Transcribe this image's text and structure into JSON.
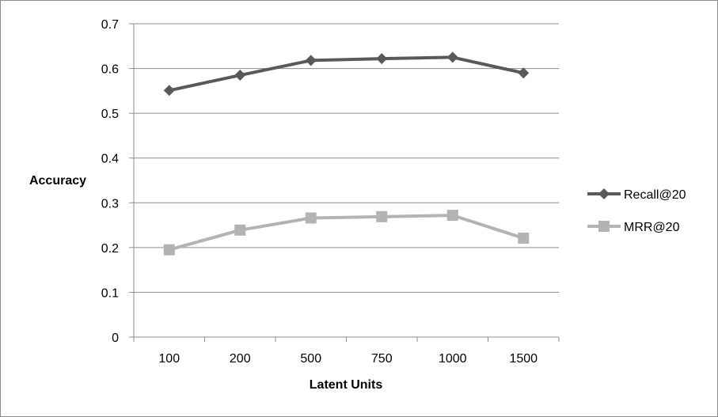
{
  "chart_data": {
    "type": "line",
    "categories": [
      "100",
      "200",
      "500",
      "750",
      "1000",
      "1500"
    ],
    "series": [
      {
        "name": "Recall@20",
        "values": [
          0.551,
          0.585,
          0.618,
          0.622,
          0.625,
          0.59
        ],
        "color": "#595959",
        "marker": "diamond"
      },
      {
        "name": "MRR@20",
        "values": [
          0.195,
          0.239,
          0.266,
          0.269,
          0.272,
          0.221
        ],
        "color": "#b3b3b3",
        "marker": "square"
      }
    ],
    "xlabel": "Latent Units",
    "ylabel": "Accuracy",
    "ylim": [
      0,
      0.7
    ],
    "yticks": [
      "0",
      "0.1",
      "0.2",
      "0.3",
      "0.4",
      "0.5",
      "0.6",
      "0.7"
    ],
    "grid": true,
    "legend_position": "right"
  }
}
